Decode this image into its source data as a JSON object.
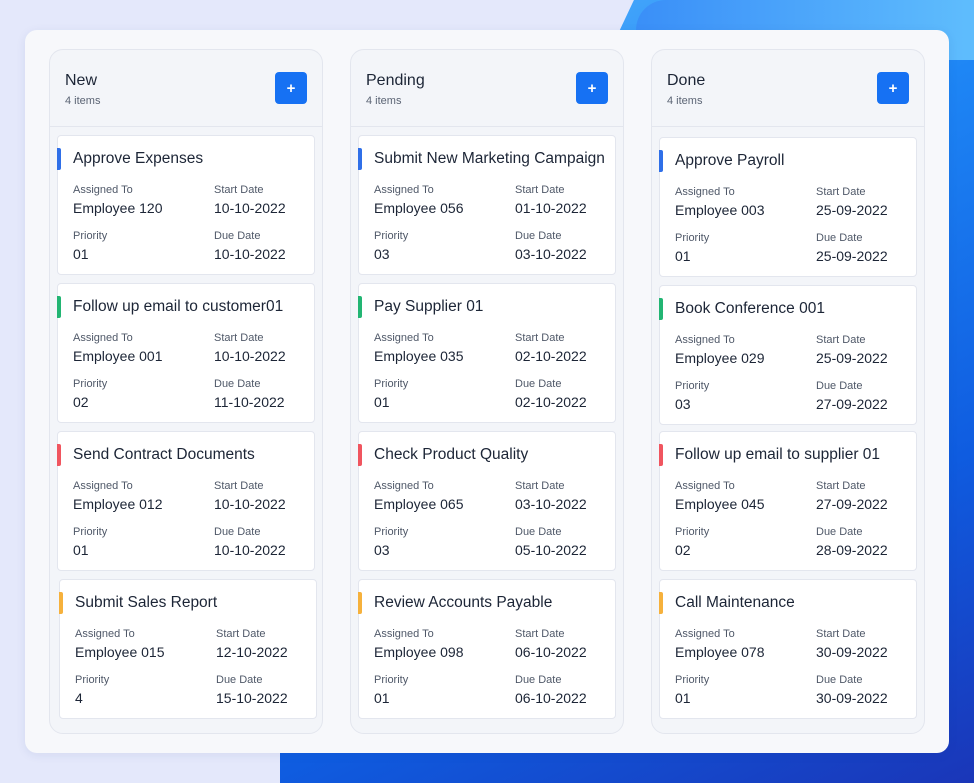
{
  "colors": {
    "blue": "#2f6fe8",
    "green": "#22b573",
    "red": "#f0555f",
    "yellow": "#f6b13c",
    "button": "#1671f3"
  },
  "add_button_icon": "+",
  "labels": {
    "assigned_to": "Assigned To",
    "start_date": "Start Date",
    "priority": "Priority",
    "due_date": "Due Date"
  },
  "columns": [
    {
      "title": "New",
      "count": "4 items",
      "cards": [
        {
          "title": "Approve Expenses",
          "assigned_to": "Employee 120",
          "start_date": "10-10-2022",
          "priority": "01",
          "due_date": "10-10-2022",
          "color": "blue"
        },
        {
          "title": "Follow up email to customer01",
          "assigned_to": "Employee 001",
          "start_date": "10-10-2022",
          "priority": "02",
          "due_date": "11-10-2022",
          "color": "green"
        },
        {
          "title": "Send Contract Documents",
          "assigned_to": "Employee 012",
          "start_date": "10-10-2022",
          "priority": "01",
          "due_date": "10-10-2022",
          "color": "red"
        },
        {
          "title": "Submit Sales Report",
          "assigned_to": "Employee 015",
          "start_date": "12-10-2022",
          "priority": "4",
          "due_date": "15-10-2022",
          "color": "yellow"
        }
      ]
    },
    {
      "title": "Pending",
      "count": "4 items",
      "cards": [
        {
          "title": "Submit New Marketing Campaign",
          "assigned_to": "Employee 056",
          "start_date": "01-10-2022",
          "priority": "03",
          "due_date": "03-10-2022",
          "color": "blue"
        },
        {
          "title": "Pay Supplier 01",
          "assigned_to": "Employee 035",
          "start_date": "02-10-2022",
          "priority": "01",
          "due_date": "02-10-2022",
          "color": "green"
        },
        {
          "title": "Check Product Quality",
          "assigned_to": "Employee 065",
          "start_date": "03-10-2022",
          "priority": "03",
          "due_date": "05-10-2022",
          "color": "red"
        },
        {
          "title": "Review Accounts Payable",
          "assigned_to": "Employee 098",
          "start_date": "06-10-2022",
          "priority": "01",
          "due_date": "06-10-2022",
          "color": "yellow"
        }
      ]
    },
    {
      "title": "Done",
      "count": "4 items",
      "cards": [
        {
          "title": "Approve Payroll",
          "assigned_to": "Employee 003",
          "start_date": "25-09-2022",
          "priority": "01",
          "due_date": "25-09-2022",
          "color": "blue"
        },
        {
          "title": "Book Conference 001",
          "assigned_to": "Employee 029",
          "start_date": "25-09-2022",
          "priority": "03",
          "due_date": "27-09-2022",
          "color": "green"
        },
        {
          "title": "Follow up email to supplier 01",
          "assigned_to": "Employee 045",
          "start_date": "27-09-2022",
          "priority": "02",
          "due_date": "28-09-2022",
          "color": "red"
        },
        {
          "title": "Call Maintenance",
          "assigned_to": "Employee 078",
          "start_date": "30-09-2022",
          "priority": "01",
          "due_date": "30-09-2022",
          "color": "yellow"
        }
      ]
    }
  ]
}
